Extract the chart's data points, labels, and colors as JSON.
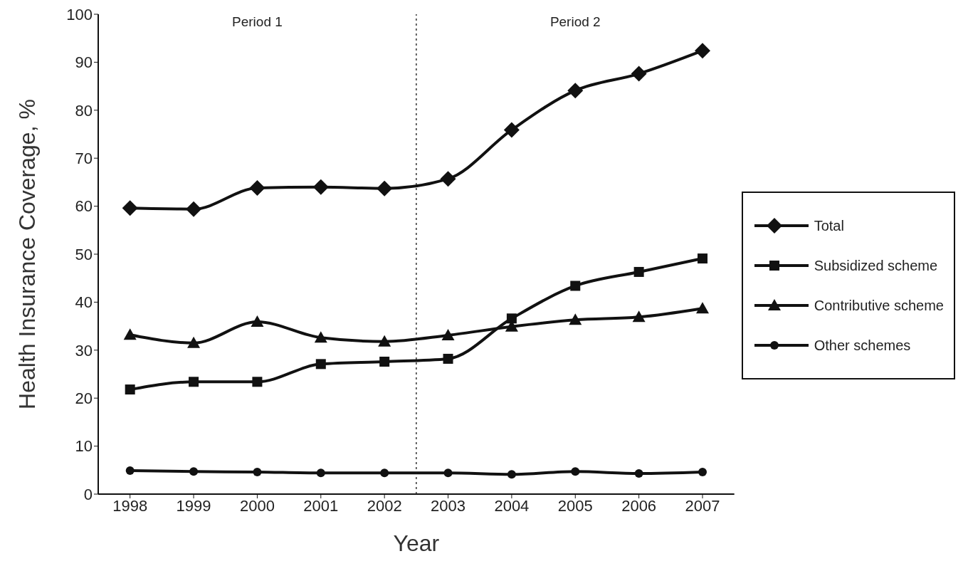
{
  "chart_data": {
    "type": "line",
    "xlabel": "Year",
    "ylabel": "Health Insurance Coverage, %",
    "x": [
      1998,
      1999,
      2000,
      2001,
      2002,
      2003,
      2004,
      2005,
      2006,
      2007
    ],
    "xlim": [
      1997.5,
      2007.5
    ],
    "xticks": [
      1998,
      1999,
      2000,
      2001,
      2002,
      2003,
      2004,
      2005,
      2006,
      2007
    ],
    "ylim": [
      0,
      100
    ],
    "yticks": [
      0,
      10,
      20,
      30,
      40,
      50,
      60,
      70,
      80,
      90,
      100
    ],
    "grid": false,
    "legend": "right",
    "line_style": "solid",
    "series": [
      {
        "name": "Total",
        "color": "#111111",
        "marker": "diamond",
        "values": [
          59.6,
          59.4,
          63.8,
          64.0,
          63.7,
          65.7,
          75.9,
          84.1,
          87.6,
          92.4
        ]
      },
      {
        "name": "Subsidized scheme",
        "color": "#111111",
        "marker": "square",
        "values": [
          21.8,
          23.4,
          23.4,
          27.1,
          27.6,
          28.2,
          36.6,
          43.4,
          46.3,
          49.1
        ]
      },
      {
        "name": "Contributive scheme",
        "color": "#111111",
        "marker": "triangle",
        "values": [
          33.2,
          31.5,
          35.9,
          32.6,
          31.8,
          33.1,
          34.9,
          36.3,
          36.9,
          38.7
        ]
      },
      {
        "name": "Other schemes",
        "color": "#111111",
        "marker": "circle",
        "values": [
          4.9,
          4.7,
          4.6,
          4.4,
          4.4,
          4.4,
          4.1,
          4.7,
          4.3,
          4.6
        ]
      }
    ],
    "ref_lines": [
      {
        "axis": "x",
        "value": 2002.5,
        "line_style": "dotted"
      }
    ],
    "annotations": [
      "Period 1",
      "Period 2"
    ]
  }
}
